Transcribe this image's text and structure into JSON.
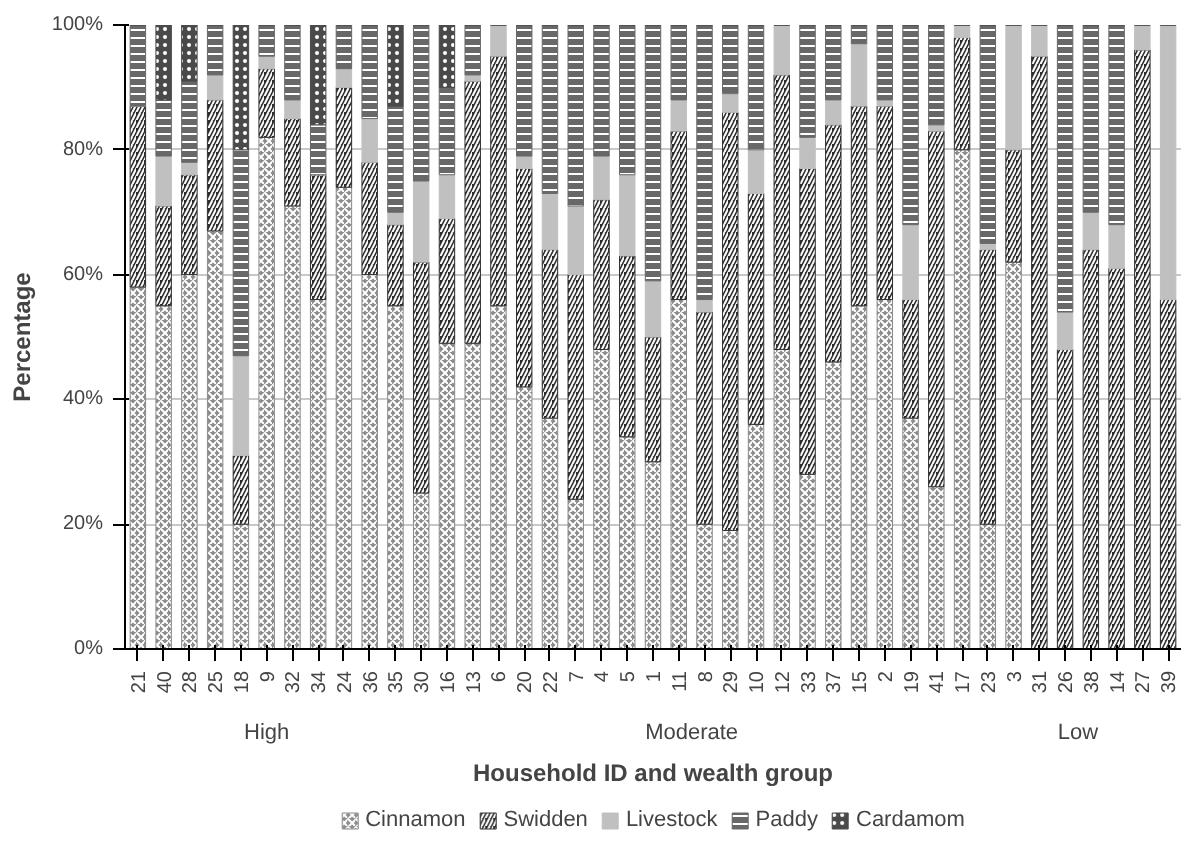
{
  "chart_data": {
    "type": "bar",
    "stacked": true,
    "xlabel": "Household ID and wealth group",
    "ylabel": "Percentage",
    "categories": [
      "21",
      "40",
      "28",
      "25",
      "18",
      "9",
      "32",
      "34",
      "24",
      "36",
      "35",
      "30",
      "16",
      "13",
      "6",
      "20",
      "22",
      "7",
      "4",
      "5",
      "1",
      "11",
      "8",
      "29",
      "10",
      "12",
      "33",
      "37",
      "15",
      "2",
      "19",
      "41",
      "17",
      "23",
      "3",
      "31",
      "26",
      "38",
      "14",
      "27",
      "39"
    ],
    "series": [
      {
        "name": "Cinnamon",
        "color": "#8c8c8c",
        "values": [
          58,
          55,
          60,
          67,
          20,
          82,
          71,
          56,
          74,
          60,
          55,
          25,
          49,
          49,
          55,
          42,
          37,
          24,
          48,
          34,
          30,
          56,
          20,
          19,
          36,
          48,
          28,
          46,
          55,
          56,
          37,
          26,
          80,
          20,
          62,
          0,
          0,
          0,
          0,
          0,
          0
        ]
      },
      {
        "name": "Swidden",
        "color": "#303030",
        "values": [
          29,
          16,
          16,
          21,
          11,
          11,
          14,
          20,
          16,
          18,
          13,
          37,
          20,
          42,
          40,
          35,
          27,
          36,
          24,
          29,
          20,
          27,
          34,
          67,
          37,
          44,
          49,
          38,
          32,
          31,
          19,
          57,
          18,
          44,
          18,
          95,
          48,
          64,
          61,
          96,
          56
        ]
      },
      {
        "name": "Livestock",
        "color": "#c0c0c0",
        "values": [
          0,
          8,
          2,
          4,
          16,
          2,
          3,
          0,
          3,
          7,
          2,
          13,
          7,
          1,
          5,
          2,
          9,
          11,
          7,
          13,
          9,
          5,
          2,
          3,
          7,
          8,
          5,
          4,
          10,
          1,
          12,
          1,
          2,
          1,
          20,
          5,
          6,
          6,
          7,
          4,
          44
        ]
      },
      {
        "name": "Paddy",
        "color": "#686868",
        "values": [
          13,
          9,
          13,
          8,
          33,
          5,
          12,
          8,
          7,
          15,
          17,
          25,
          14,
          8,
          0,
          21,
          27,
          29,
          21,
          24,
          41,
          12,
          44,
          11,
          20,
          0,
          18,
          12,
          3,
          12,
          32,
          16,
          0,
          35,
          0,
          0,
          46,
          30,
          32,
          0,
          0
        ]
      },
      {
        "name": "Cardamom",
        "color": "#4a4a4a",
        "values": [
          0,
          12,
          9,
          0,
          20,
          0,
          0,
          16,
          0,
          0,
          13,
          0,
          10,
          0,
          0,
          0,
          0,
          0,
          0,
          0,
          0,
          0,
          0,
          0,
          0,
          0,
          0,
          0,
          0,
          0,
          0,
          0,
          0,
          0,
          0,
          0,
          0,
          0,
          0,
          0,
          0
        ]
      }
    ],
    "ylim": [
      0,
      100
    ],
    "yticks": [
      {
        "value": 0,
        "label": "0%"
      },
      {
        "value": 20,
        "label": "20%"
      },
      {
        "value": 40,
        "label": "40%"
      },
      {
        "value": 60,
        "label": "60%"
      },
      {
        "value": 80,
        "label": "80%"
      },
      {
        "value": 100,
        "label": "100%"
      }
    ],
    "grid": "y",
    "legend": "bottom",
    "annotations": [
      "High",
      "Moderate",
      "Low"
    ]
  }
}
